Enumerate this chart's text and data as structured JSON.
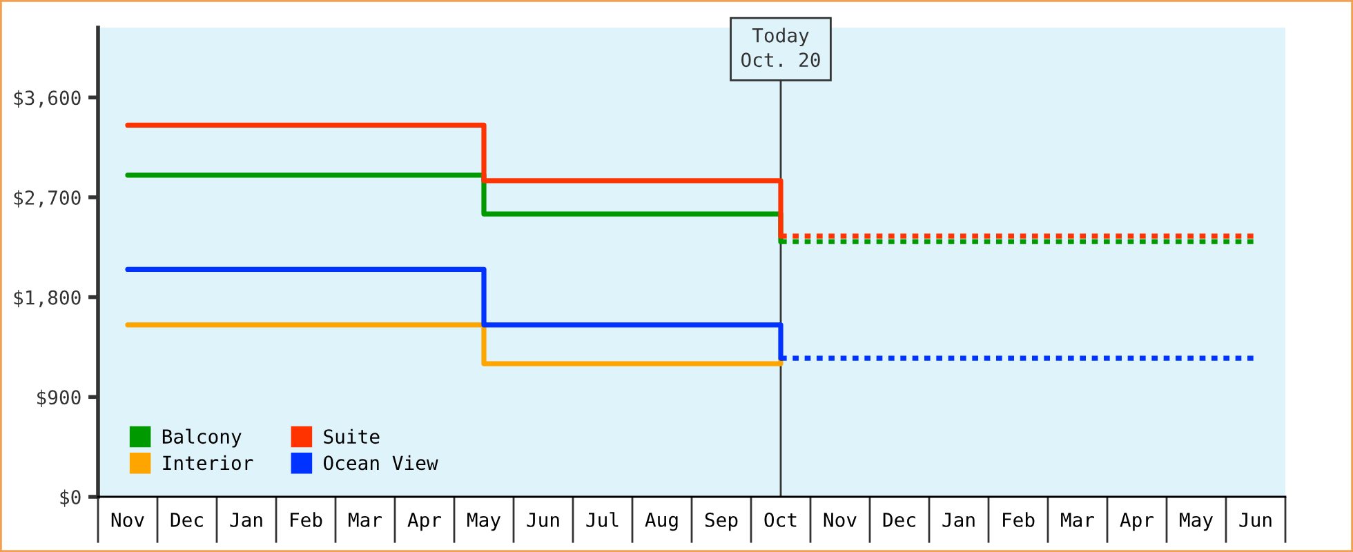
{
  "chart_data": {
    "type": "step",
    "categories": [
      "Nov",
      "Dec",
      "Jan",
      "Feb",
      "Mar",
      "Apr",
      "May",
      "Jun",
      "Jul",
      "Aug",
      "Sep",
      "Oct",
      "Nov",
      "Dec",
      "Jan",
      "Feb",
      "Mar",
      "Apr",
      "May",
      "Jun"
    ],
    "ylim": [
      0,
      4230
    ],
    "yticks": [
      {
        "value": 0,
        "label": "$0"
      },
      {
        "value": 900,
        "label": "$900"
      },
      {
        "value": 1800,
        "label": "$1,800"
      },
      {
        "value": 2700,
        "label": "$2,700"
      },
      {
        "value": 3600,
        "label": "$3,600"
      }
    ],
    "series": [
      {
        "name": "Balcony",
        "color": "#009900",
        "line_style": "solid",
        "values": [
          2900,
          2900,
          2900,
          2900,
          2900,
          2900,
          2550,
          2550,
          2550,
          2550,
          2550,
          2300,
          null,
          null,
          null,
          null,
          null,
          null,
          null,
          null
        ]
      },
      {
        "name": "Interior",
        "color": "#ffa500",
        "line_style": "solid",
        "values": [
          1550,
          1550,
          1550,
          1550,
          1550,
          1550,
          1200,
          1200,
          1200,
          1200,
          1200,
          1250,
          null,
          null,
          null,
          null,
          null,
          null,
          null,
          null
        ]
      },
      {
        "name": "Suite",
        "color": "#ff3300",
        "line_style": "solid",
        "values": [
          3350,
          3350,
          3350,
          3350,
          3350,
          3350,
          2850,
          2850,
          2850,
          2850,
          2850,
          2350,
          null,
          null,
          null,
          null,
          null,
          null,
          null,
          null
        ]
      },
      {
        "name": "Ocean View",
        "color": "#0033ff",
        "line_style": "solid",
        "values": [
          2050,
          2050,
          2050,
          2050,
          2050,
          2050,
          1550,
          1550,
          1550,
          1550,
          1550,
          1250,
          null,
          null,
          null,
          null,
          null,
          null,
          null,
          null
        ]
      },
      {
        "color": "#009900",
        "line_style": "dotted",
        "values": [
          null,
          null,
          null,
          null,
          null,
          null,
          null,
          null,
          null,
          null,
          null,
          2300,
          2300,
          2300,
          2300,
          2300,
          2300,
          2300,
          2300,
          2300
        ]
      },
      {
        "color": "#ff3300",
        "line_style": "dotted",
        "values": [
          null,
          null,
          null,
          null,
          null,
          null,
          null,
          null,
          null,
          null,
          null,
          2350,
          2350,
          2350,
          2350,
          2350,
          2350,
          2350,
          2350,
          2350
        ]
      },
      {
        "color": "#0033ff",
        "line_style": "dotted",
        "values": [
          null,
          null,
          null,
          null,
          null,
          null,
          null,
          null,
          null,
          null,
          null,
          1250,
          1250,
          1250,
          1250,
          1250,
          1250,
          1250,
          1250,
          1250
        ]
      }
    ],
    "ref_lines": [
      {
        "axis": "x",
        "value": "Oct",
        "label": "Today\nOct. 20",
        "color": "#333333"
      }
    ],
    "legend": "bottom left",
    "grid": false
  }
}
